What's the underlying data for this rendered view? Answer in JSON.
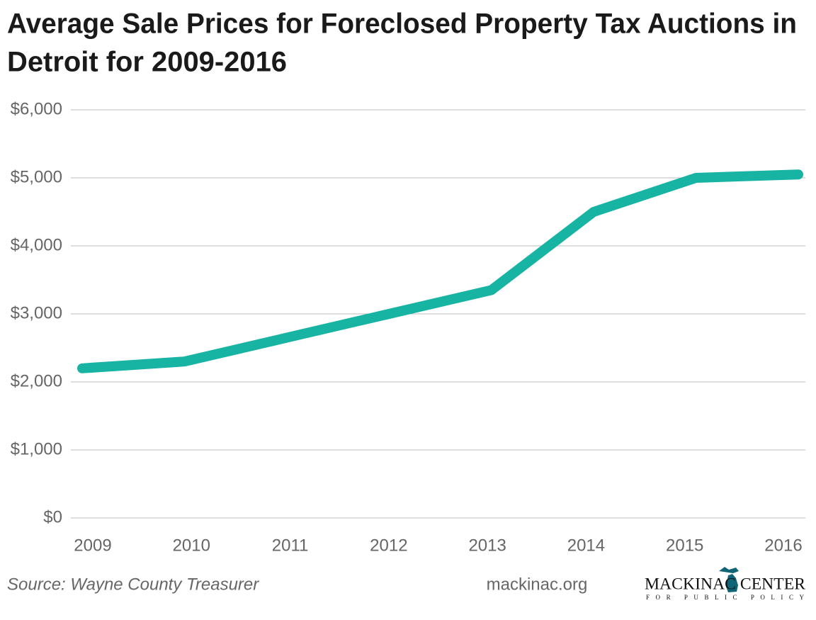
{
  "chart_data": {
    "type": "line",
    "title": "Average Sale Prices for Foreclosed Property Tax Auctions in",
    "title_line2": "Detroit for 2009-2016",
    "categories": [
      "2009",
      "2010",
      "2011",
      "2012",
      "2013",
      "2014",
      "2015",
      "2016"
    ],
    "series": [
      {
        "color": "#17b3a3",
        "values": [
          2200,
          2300,
          2650,
          3000,
          3350,
          4500,
          5000,
          5050
        ]
      }
    ],
    "ylim": [
      0,
      6000
    ],
    "yticks": [
      {
        "value": 0,
        "label": "$0"
      },
      {
        "value": 1000,
        "label": "$1,000"
      },
      {
        "value": 2000,
        "label": "$2,000"
      },
      {
        "value": 3000,
        "label": "$3,000"
      },
      {
        "value": 4000,
        "label": "$4,000"
      },
      {
        "value": 5000,
        "label": "$5,000"
      },
      {
        "value": 6000,
        "label": "$6,000"
      }
    ],
    "grid": true,
    "source": "Source: Wayne County Treasurer"
  },
  "footer": {
    "website": "mackinac.org",
    "logo_name": "MACKINAC CENTER",
    "logo_tagline": "FOR PUBLIC POLICY"
  }
}
